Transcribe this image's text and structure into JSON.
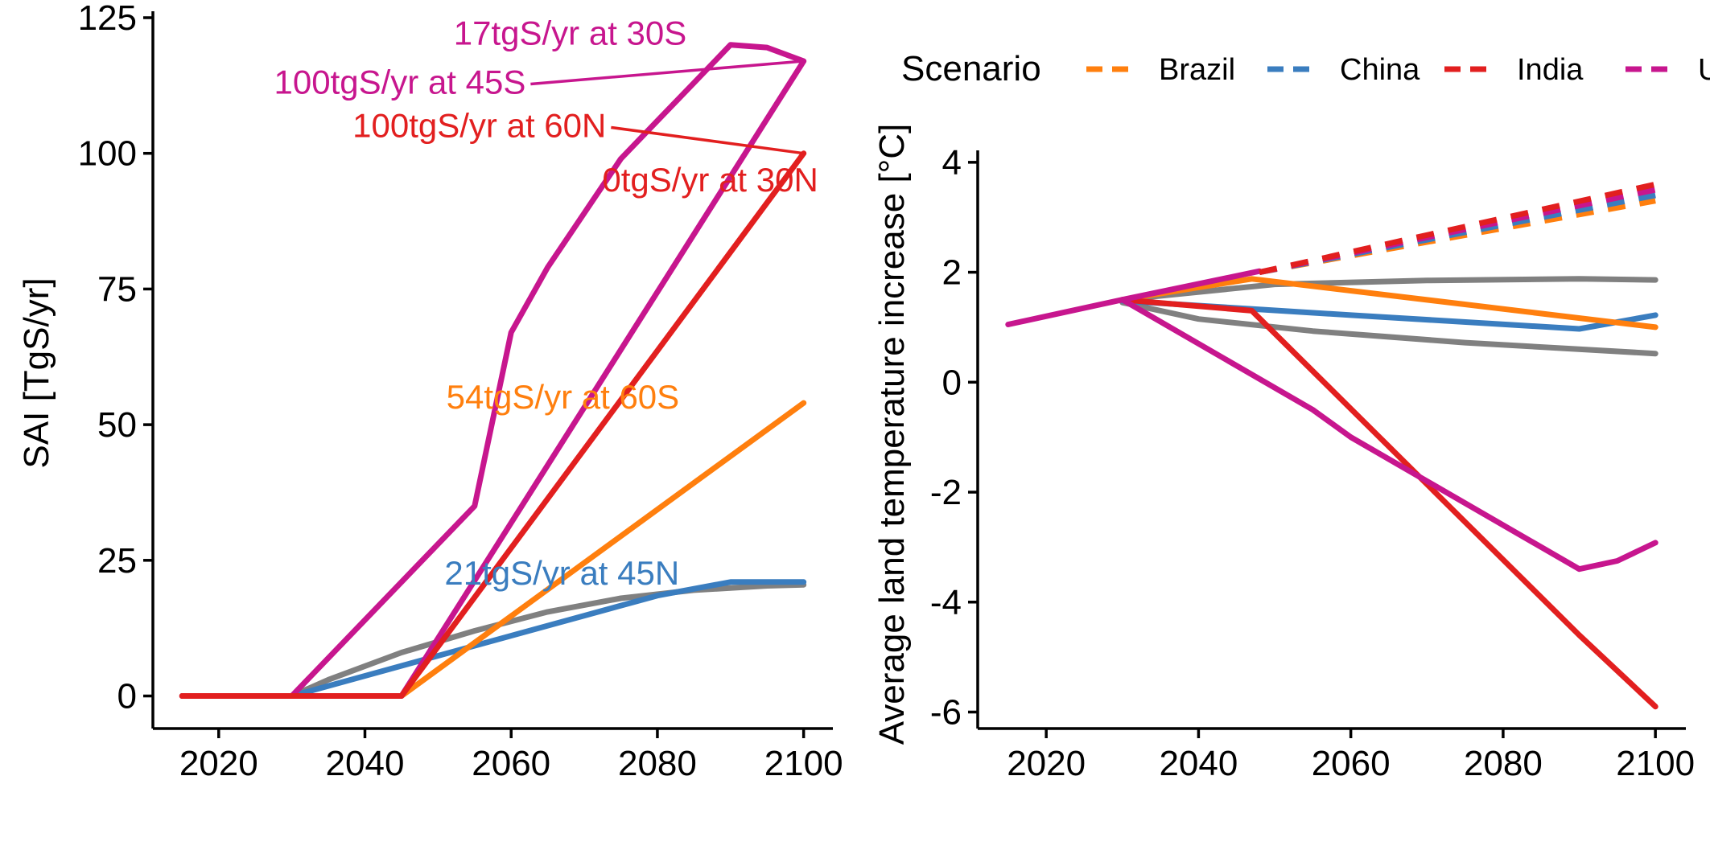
{
  "legend": {
    "title": "Scenario",
    "items": [
      {
        "label": "Brazil",
        "color": "#FF7F0E"
      },
      {
        "label": "China",
        "color": "#3A7DBF"
      },
      {
        "label": "India",
        "color": "#E21F1F"
      },
      {
        "label": "U",
        "color": "#C7168E"
      }
    ]
  },
  "chart_data": [
    {
      "type": "line",
      "title": "",
      "xlabel": "",
      "ylabel": "SAI [TgS/yr]",
      "xlim": [
        2011,
        2104
      ],
      "ylim": [
        -6,
        125
      ],
      "xticks": [
        2020,
        2040,
        2060,
        2080,
        2100
      ],
      "yticks": [
        0,
        25,
        50,
        75,
        100,
        125
      ],
      "grid": false,
      "series": [
        {
          "color": "#808080",
          "x": [
            2015,
            2030,
            2035,
            2045,
            2055,
            2065,
            2075,
            2085,
            2095,
            2100
          ],
          "y": [
            0,
            0,
            3,
            8,
            12,
            15.5,
            18,
            19.5,
            20.3,
            20.5
          ]
        },
        {
          "color": "#3A7DBF",
          "x": [
            2015,
            2030,
            2080,
            2090,
            2100
          ],
          "y": [
            0,
            0,
            18.5,
            21,
            21
          ]
        },
        {
          "color": "#FF7F0E",
          "x": [
            2015,
            2045,
            2100
          ],
          "y": [
            0,
            0,
            54
          ]
        },
        {
          "color": "#C7168E",
          "x": [
            2015,
            2030,
            2055,
            2060,
            2065,
            2070,
            2075,
            2080,
            2085,
            2090,
            2095,
            2100,
            2045,
            2030
          ],
          "y": [
            0,
            0,
            35,
            67,
            79,
            89,
            99,
            106,
            113,
            120,
            119.5,
            117,
            0,
            0
          ]
        },
        {
          "color": "#E21F1F",
          "x": [
            2015,
            2045,
            2100
          ],
          "y": [
            0,
            0,
            100
          ]
        }
      ],
      "annotations": [
        {
          "text": "17tgS/yr at 30S",
          "x": 2084,
          "y": 120,
          "color": "#C7168E"
        },
        {
          "text": "100tgS/yr at 45S",
          "x": 2062,
          "y": 111,
          "color": "#C7168E",
          "line_to": [
            2100,
            117
          ]
        },
        {
          "text": "100tgS/yr at 60N",
          "x": 2073,
          "y": 103,
          "color": "#E21F1F",
          "line_to": [
            2100,
            100
          ]
        },
        {
          "text": "0tgS/yr at 30N",
          "x": 2102,
          "y": 93,
          "color": "#E21F1F"
        },
        {
          "text": "54tgS/yr at 60S",
          "x": 2083,
          "y": 53,
          "color": "#FF7F0E"
        },
        {
          "text": "21tgS/yr at 45N",
          "x": 2083,
          "y": 20.5,
          "color": "#3A7DBF"
        }
      ]
    },
    {
      "type": "line",
      "title": "",
      "xlabel": "",
      "ylabel": "Average land temperature increase [°C]",
      "xlim": [
        2011,
        2104
      ],
      "ylim": [
        -6.3,
        4.1
      ],
      "xticks": [
        2020,
        2040,
        2060,
        2080,
        2100
      ],
      "yticks": [
        4,
        2,
        0,
        -2,
        -4,
        -6
      ],
      "grid": false,
      "series": [
        {
          "color": "#808080",
          "x": [
            2030,
            2050,
            2070,
            2090,
            2100
          ],
          "y": [
            1.5,
            1.78,
            1.85,
            1.88,
            1.86
          ]
        },
        {
          "color": "#808080",
          "x": [
            2030,
            2040,
            2055,
            2075,
            2100
          ],
          "y": [
            1.45,
            1.15,
            0.93,
            0.72,
            0.52
          ]
        },
        {
          "color": "#3A7DBF",
          "x": [
            2030,
            2060,
            2090,
            2100
          ],
          "y": [
            1.48,
            1.22,
            0.97,
            1.22
          ]
        },
        {
          "color": "#FF7F0E",
          "x": [
            2030,
            2047,
            2100
          ],
          "y": [
            1.5,
            1.88,
            1.0
          ]
        },
        {
          "color": "#E21F1F",
          "x": [
            2030,
            2047,
            2090,
            2095,
            2100
          ],
          "y": [
            1.5,
            1.3,
            -4.6,
            -5.25,
            -5.9
          ]
        },
        {
          "color": "#C7168E",
          "x": [
            2015,
            2030,
            2055,
            2060,
            2090,
            2095,
            2100
          ],
          "y": [
            1.05,
            1.5,
            -0.5,
            -1.0,
            -3.4,
            -3.25,
            -2.92
          ]
        },
        {
          "color": "#C7168E",
          "x": [
            2030,
            2048
          ],
          "y": [
            1.5,
            2.02
          ]
        },
        {
          "color": "#FF7F0E",
          "x": [
            2048,
            2100
          ],
          "y": [
            2.0,
            3.3
          ],
          "dashed": true
        },
        {
          "color": "#3A7DBF",
          "x": [
            2048,
            2100
          ],
          "y": [
            2.0,
            3.4
          ],
          "dashed": true
        },
        {
          "color": "#C7168E",
          "x": [
            2048,
            2100
          ],
          "y": [
            2.0,
            3.5
          ],
          "dashed": true
        },
        {
          "color": "#E21F1F",
          "x": [
            2048,
            2100
          ],
          "y": [
            2.0,
            3.6
          ],
          "dashed": true
        }
      ]
    }
  ]
}
